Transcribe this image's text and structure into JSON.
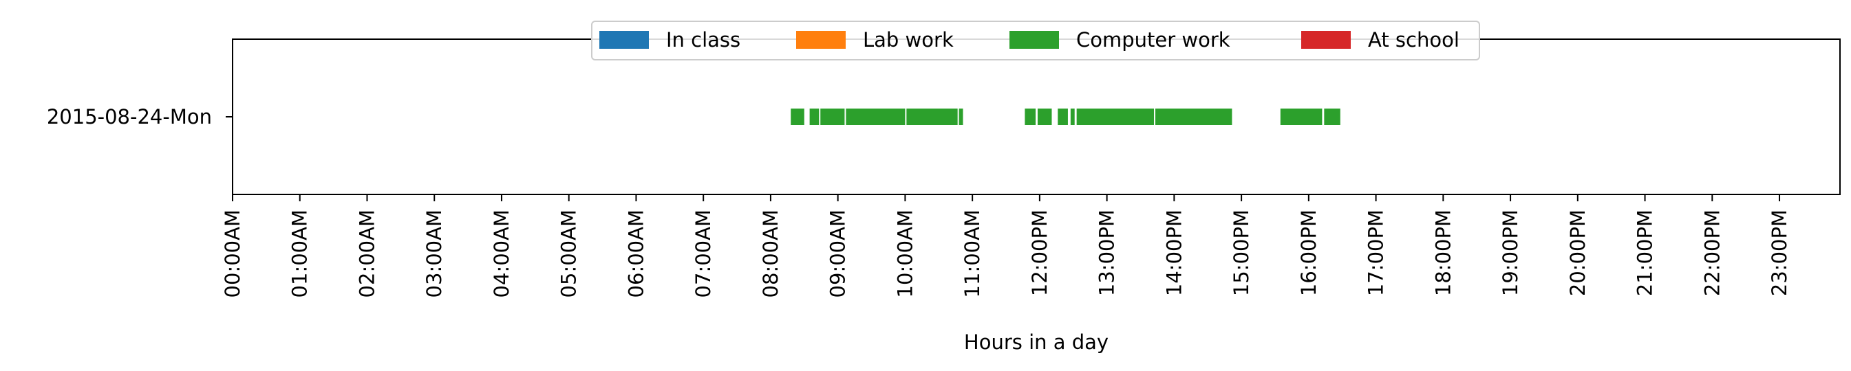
{
  "chart_data": {
    "type": "bar",
    "orientation": "horizontal",
    "xlabel": "Hours in a day",
    "xlim": [
      0,
      24
    ],
    "x_ticks": [
      "00:00AM",
      "01:00AM",
      "02:00AM",
      "03:00AM",
      "04:00AM",
      "05:00AM",
      "06:00AM",
      "07:00AM",
      "08:00AM",
      "09:00AM",
      "10:00AM",
      "11:00AM",
      "12:00PM",
      "13:00PM",
      "14:00PM",
      "15:00PM",
      "16:00PM",
      "17:00PM",
      "18:00PM",
      "19:00PM",
      "20:00PM",
      "21:00PM",
      "22:00PM",
      "23:00PM"
    ],
    "categories": [
      "2015-08-24-Mon"
    ],
    "legend_position": "top-center",
    "grid": false,
    "legend": [
      {
        "label": "In class",
        "color": "#1f77b4"
      },
      {
        "label": "Lab work",
        "color": "#ff7f0e"
      },
      {
        "label": "Computer work",
        "color": "#2ca02c"
      },
      {
        "label": "At school",
        "color": "#d62728"
      }
    ],
    "segments": [
      {
        "category": "2015-08-24-Mon",
        "activity": "Computer work",
        "start": 8.3,
        "end": 8.5
      },
      {
        "category": "2015-08-24-Mon",
        "activity": "Computer work",
        "start": 8.58,
        "end": 8.72
      },
      {
        "category": "2015-08-24-Mon",
        "activity": "Computer work",
        "start": 8.74,
        "end": 9.1
      },
      {
        "category": "2015-08-24-Mon",
        "activity": "Computer work",
        "start": 9.12,
        "end": 10.0
      },
      {
        "category": "2015-08-24-Mon",
        "activity": "Computer work",
        "start": 10.02,
        "end": 10.78
      },
      {
        "category": "2015-08-24-Mon",
        "activity": "Computer work",
        "start": 10.8,
        "end": 10.86
      },
      {
        "category": "2015-08-24-Mon",
        "activity": "Computer work",
        "start": 11.78,
        "end": 11.94
      },
      {
        "category": "2015-08-24-Mon",
        "activity": "Computer work",
        "start": 11.97,
        "end": 12.18
      },
      {
        "category": "2015-08-24-Mon",
        "activity": "Computer work",
        "start": 12.27,
        "end": 12.42
      },
      {
        "category": "2015-08-24-Mon",
        "activity": "Computer work",
        "start": 12.46,
        "end": 12.52
      },
      {
        "category": "2015-08-24-Mon",
        "activity": "Computer work",
        "start": 12.55,
        "end": 13.7
      },
      {
        "category": "2015-08-24-Mon",
        "activity": "Computer work",
        "start": 13.72,
        "end": 14.86
      },
      {
        "category": "2015-08-24-Mon",
        "activity": "Computer work",
        "start": 15.58,
        "end": 16.2
      },
      {
        "category": "2015-08-24-Mon",
        "activity": "Computer work",
        "start": 16.23,
        "end": 16.47
      }
    ]
  }
}
